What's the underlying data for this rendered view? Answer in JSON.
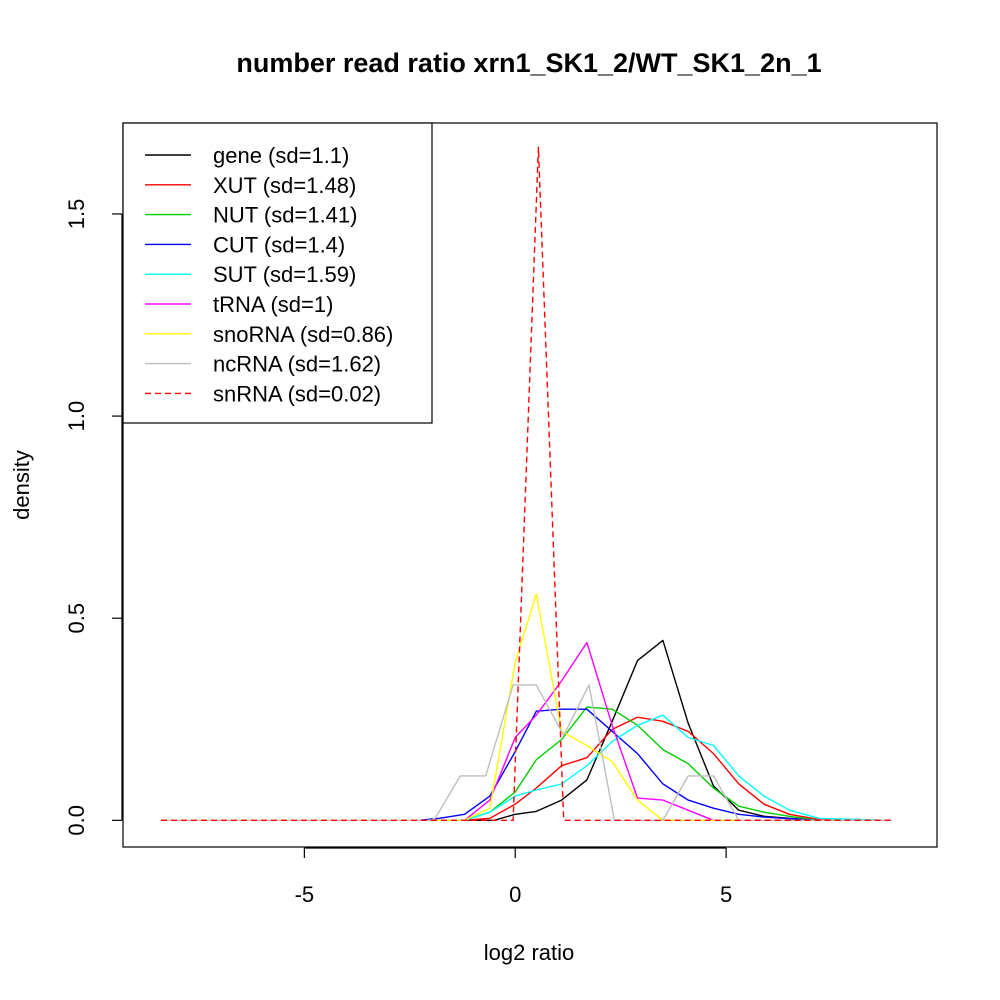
{
  "chart_data": {
    "type": "line",
    "title": "number read ratio xrn1_SK1_2/WT_SK1_2n_1",
    "xlabel": "log2 ratio",
    "ylabel": "density",
    "xlim": [
      -9.3,
      10.0
    ],
    "ylim": [
      -0.066,
      1.725
    ],
    "x_ticks": [
      -5,
      0,
      5
    ],
    "x_tick_labels": [
      "-5",
      "0",
      "5"
    ],
    "y_ticks": [
      0.0,
      0.5,
      1.0,
      1.5
    ],
    "y_tick_labels": [
      "0.0",
      "0.5",
      "1.0",
      "1.5"
    ],
    "grid": false,
    "legend_position": "top-left",
    "series": [
      {
        "name": "gene (sd=1.1)",
        "color": "#000000",
        "dash": "solid",
        "x": [
          -8.4,
          -0.5,
          0.0,
          0.5,
          1.1,
          1.7,
          2.3,
          2.9,
          3.5,
          4.1,
          4.7,
          5.3,
          5.9,
          6.5,
          7.2,
          8.9
        ],
        "y": [
          0,
          0,
          0.015,
          0.022,
          0.05,
          0.1,
          0.245,
          0.395,
          0.445,
          0.24,
          0.085,
          0.025,
          0.01,
          0.005,
          0,
          0
        ]
      },
      {
        "name": "XUT (sd=1.48)",
        "color": "#ff0000",
        "dash": "solid",
        "x": [
          -8.4,
          -1.2,
          -0.6,
          0.0,
          0.5,
          1.1,
          1.7,
          2.3,
          2.9,
          3.5,
          4.1,
          4.7,
          5.3,
          5.9,
          6.5,
          7.2,
          8.9
        ],
        "y": [
          0,
          0,
          0.005,
          0.04,
          0.08,
          0.135,
          0.155,
          0.225,
          0.255,
          0.245,
          0.22,
          0.165,
          0.09,
          0.04,
          0.015,
          0.002,
          0
        ]
      },
      {
        "name": "NUT (sd=1.41)",
        "color": "#00cd00",
        "dash": "solid",
        "x": [
          -8.4,
          -1.2,
          -0.6,
          0.0,
          0.5,
          1.1,
          1.7,
          2.3,
          2.9,
          3.5,
          4.1,
          4.7,
          5.3,
          5.9,
          6.5,
          7.2,
          8.9
        ],
        "y": [
          0,
          0,
          0.02,
          0.07,
          0.15,
          0.2,
          0.28,
          0.275,
          0.235,
          0.175,
          0.14,
          0.08,
          0.035,
          0.02,
          0.01,
          0,
          0
        ]
      },
      {
        "name": "CUT (sd=1.4)",
        "color": "#0000ff",
        "dash": "solid",
        "x": [
          -8.4,
          -2.3,
          -1.8,
          -1.2,
          -0.6,
          0.0,
          0.5,
          1.1,
          1.7,
          2.3,
          2.9,
          3.5,
          4.1,
          4.7,
          5.3,
          5.9,
          6.5,
          7.2,
          8.9
        ],
        "y": [
          0,
          0,
          0.005,
          0.015,
          0.06,
          0.17,
          0.27,
          0.275,
          0.275,
          0.22,
          0.165,
          0.09,
          0.05,
          0.03,
          0.015,
          0.008,
          0.004,
          0,
          0
        ]
      },
      {
        "name": "SUT (sd=1.59)",
        "color": "#00ffff",
        "dash": "solid",
        "x": [
          -8.4,
          -1.2,
          -0.6,
          0.0,
          0.5,
          1.1,
          1.7,
          2.3,
          2.9,
          3.5,
          4.1,
          4.7,
          5.3,
          5.9,
          6.5,
          7.2,
          8.9
        ],
        "y": [
          0,
          0,
          0.02,
          0.06,
          0.075,
          0.09,
          0.135,
          0.195,
          0.235,
          0.26,
          0.205,
          0.185,
          0.11,
          0.06,
          0.025,
          0.005,
          0
        ]
      },
      {
        "name": "tRNA (sd=1)",
        "color": "#ff00ff",
        "dash": "solid",
        "x": [
          -8.4,
          -1.2,
          -0.6,
          0.0,
          0.5,
          1.1,
          1.7,
          2.3,
          2.9,
          3.5,
          4.1,
          4.7,
          5.3,
          8.9
        ],
        "y": [
          0,
          0,
          0.05,
          0.205,
          0.26,
          0.345,
          0.44,
          0.235,
          0.055,
          0.05,
          0.025,
          0,
          0,
          0
        ]
      },
      {
        "name": "snoRNA (sd=0.86)",
        "color": "#ffff00",
        "dash": "solid",
        "x": [
          -8.4,
          -1.2,
          -0.6,
          0.0,
          0.5,
          1.1,
          1.7,
          2.3,
          2.9,
          3.5,
          4.1,
          8.9
        ],
        "y": [
          0,
          0,
          0.03,
          0.39,
          0.56,
          0.22,
          0.185,
          0.145,
          0.05,
          0,
          0,
          0
        ]
      },
      {
        "name": "ncRNA (sd=1.62)",
        "color": "#bebebe",
        "dash": "solid",
        "x": [
          -8.4,
          -2.0,
          -1.9,
          -1.3,
          -0.7,
          -0.05,
          0.5,
          1.15,
          1.75,
          2.35,
          2.95,
          3.5,
          4.1,
          4.7,
          5.3,
          8.9
        ],
        "y": [
          0,
          0,
          0.005,
          0.11,
          0.11,
          0.335,
          0.335,
          0.21,
          0.335,
          0,
          0,
          0,
          0.11,
          0.11,
          0,
          0
        ]
      },
      {
        "name": "snRNA (sd=0.02)",
        "color": "#ff0000",
        "dash": "dashed",
        "x": [
          -8.4,
          -0.05,
          0.55,
          1.15,
          8.9
        ],
        "y": [
          0,
          0,
          1.665,
          0,
          0
        ]
      }
    ]
  }
}
